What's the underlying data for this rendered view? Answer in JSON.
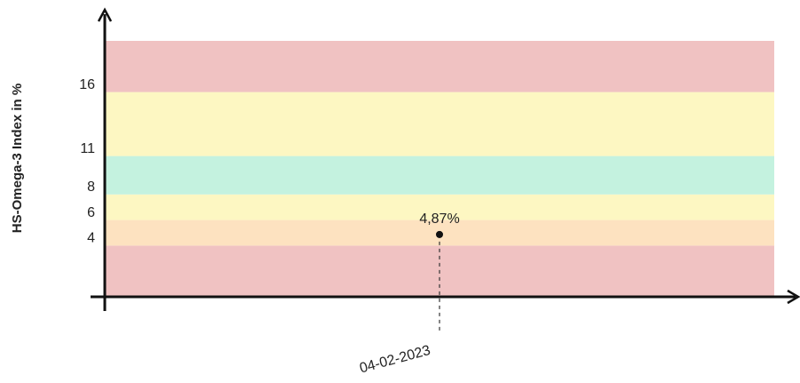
{
  "chart_data": {
    "type": "line",
    "y_label": "HS-Omega-3 Index in %",
    "categories": [
      "04-02-2023"
    ],
    "series": [
      {
        "color": "#111111",
        "values": [
          4.87
        ],
        "value_labels": [
          "4,87%"
        ]
      }
    ],
    "ylim": [
      0,
      20
    ],
    "yticks": [
      4,
      6,
      8,
      11,
      16
    ],
    "bands": [
      {
        "from": 0,
        "to": 4,
        "color": "#f0c2c2"
      },
      {
        "from": 4,
        "to": 6,
        "color": "#fde2c0"
      },
      {
        "from": 6,
        "to": 8,
        "color": "#fdf7c2"
      },
      {
        "from": 8,
        "to": 11,
        "color": "#c4f2df"
      },
      {
        "from": 11,
        "to": 16,
        "color": "#fdf7c2"
      },
      {
        "from": 16,
        "to": 20,
        "color": "#f0c2c2"
      }
    ]
  }
}
